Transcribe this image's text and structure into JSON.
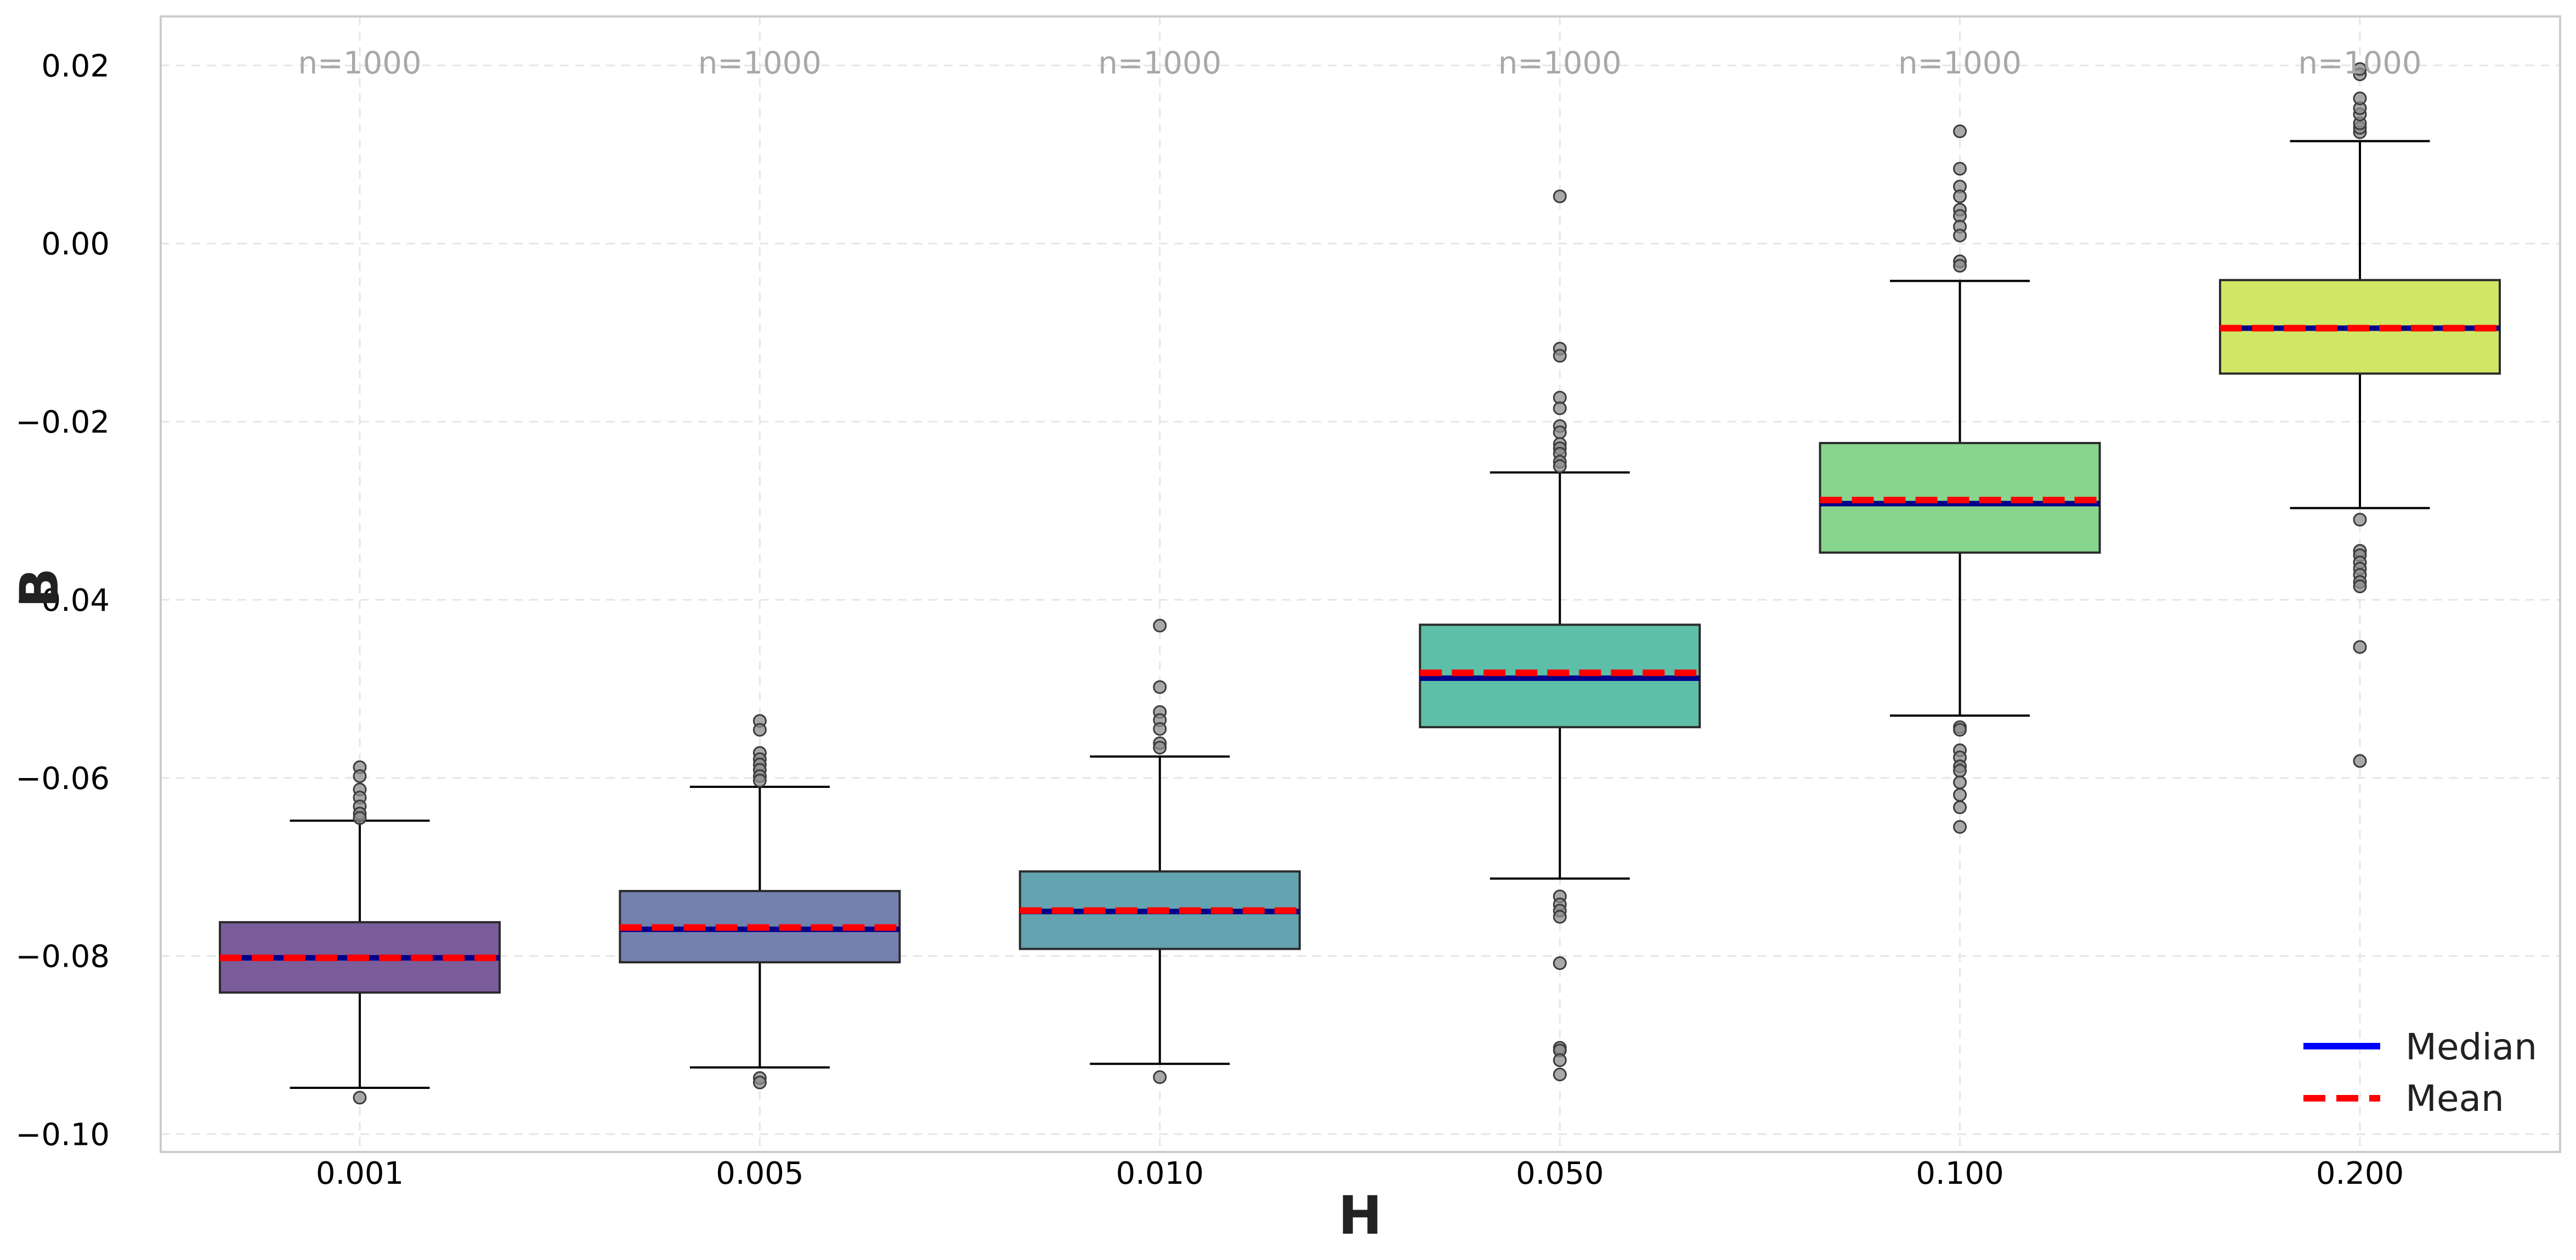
{
  "chart_data": {
    "type": "box",
    "xlabel": "H",
    "ylabel": "B",
    "ylim": [
      -0.102,
      0.0255
    ],
    "yticks": [
      0.02,
      0.0,
      -0.02,
      -0.04,
      -0.06,
      -0.08,
      -0.1
    ],
    "ytick_labels": [
      "0.02",
      "0.00",
      "−0.02",
      "−0.04",
      "−0.06",
      "−0.08",
      "−0.10"
    ],
    "grid": true,
    "legend_position": "bottom-right",
    "legend": [
      {
        "label": "Median",
        "color": "#0000ff",
        "style": "solid"
      },
      {
        "label": "Mean",
        "color": "#ff0000",
        "style": "dashed"
      }
    ],
    "boxes": [
      {
        "category": "0.001",
        "n_label": "n=1000",
        "color": "#7a5c9a",
        "whisker_low": -0.0948,
        "q1": -0.0841,
        "median": -0.0802,
        "mean": -0.0802,
        "q3": -0.0762,
        "whisker_high": -0.0648,
        "outliers": [
          -0.0959,
          -0.0588,
          -0.0598,
          -0.0613,
          -0.0622,
          -0.0632,
          -0.064,
          -0.0645
        ]
      },
      {
        "category": "0.005",
        "n_label": "n=1000",
        "color": "#7480ae",
        "whisker_low": -0.0925,
        "q1": -0.0807,
        "median": -0.077,
        "mean": -0.0768,
        "q3": -0.0727,
        "whisker_high": -0.061,
        "outliers": [
          -0.0937,
          -0.0942,
          -0.0536,
          -0.0546,
          -0.0572,
          -0.0579,
          -0.0585,
          -0.0591,
          -0.0598,
          -0.0603
        ]
      },
      {
        "category": "0.010",
        "n_label": "n=1000",
        "color": "#64a3b0",
        "whisker_low": -0.0921,
        "q1": -0.0792,
        "median": -0.075,
        "mean": -0.0749,
        "q3": -0.0705,
        "whisker_high": -0.0576,
        "outliers": [
          -0.0936,
          -0.0429,
          -0.0498,
          -0.0526,
          -0.0535,
          -0.0545,
          -0.0561,
          -0.0566
        ]
      },
      {
        "category": "0.050",
        "n_label": "n=1000",
        "color": "#5dbfa8",
        "whisker_low": -0.0713,
        "q1": -0.0543,
        "median": -0.0488,
        "mean": -0.0482,
        "q3": -0.0428,
        "whisker_high": -0.0257,
        "outliers": [
          -0.0733,
          -0.0742,
          -0.0749,
          -0.0756,
          -0.0808,
          -0.0903,
          -0.0906,
          -0.0917,
          -0.0933,
          0.0053,
          -0.0118,
          -0.0126,
          -0.0173,
          -0.0185,
          -0.0205,
          -0.0212,
          -0.0225,
          -0.023,
          -0.0236,
          -0.0245,
          -0.025
        ]
      },
      {
        "category": "0.100",
        "n_label": "n=1000",
        "color": "#88d58e",
        "whisker_low": -0.053,
        "q1": -0.0347,
        "median": -0.0292,
        "mean": -0.0288,
        "q3": -0.0224,
        "whisker_high": -0.0042,
        "outliers": [
          -0.0543,
          -0.0546,
          -0.0569,
          -0.0577,
          -0.0587,
          -0.0592,
          -0.0605,
          -0.0619,
          -0.0633,
          -0.0655,
          0.0126,
          0.0084,
          0.0064,
          0.0053,
          0.0038,
          0.0031,
          0.0019,
          0.0009,
          -0.002,
          -0.0025
        ]
      },
      {
        "category": "0.200",
        "n_label": "n=1000",
        "color": "#d1e665",
        "whisker_low": -0.0297,
        "q1": -0.0146,
        "median": -0.0095,
        "mean": -0.0095,
        "q3": -0.0041,
        "whisker_high": 0.0115,
        "outliers": [
          -0.031,
          -0.0345,
          -0.035,
          -0.0358,
          -0.0365,
          -0.0372,
          -0.038,
          -0.0385,
          -0.0453,
          -0.0581,
          0.0125,
          0.013,
          0.0135,
          0.0145,
          0.0152,
          0.0163,
          0.019,
          0.0196
        ]
      }
    ]
  }
}
